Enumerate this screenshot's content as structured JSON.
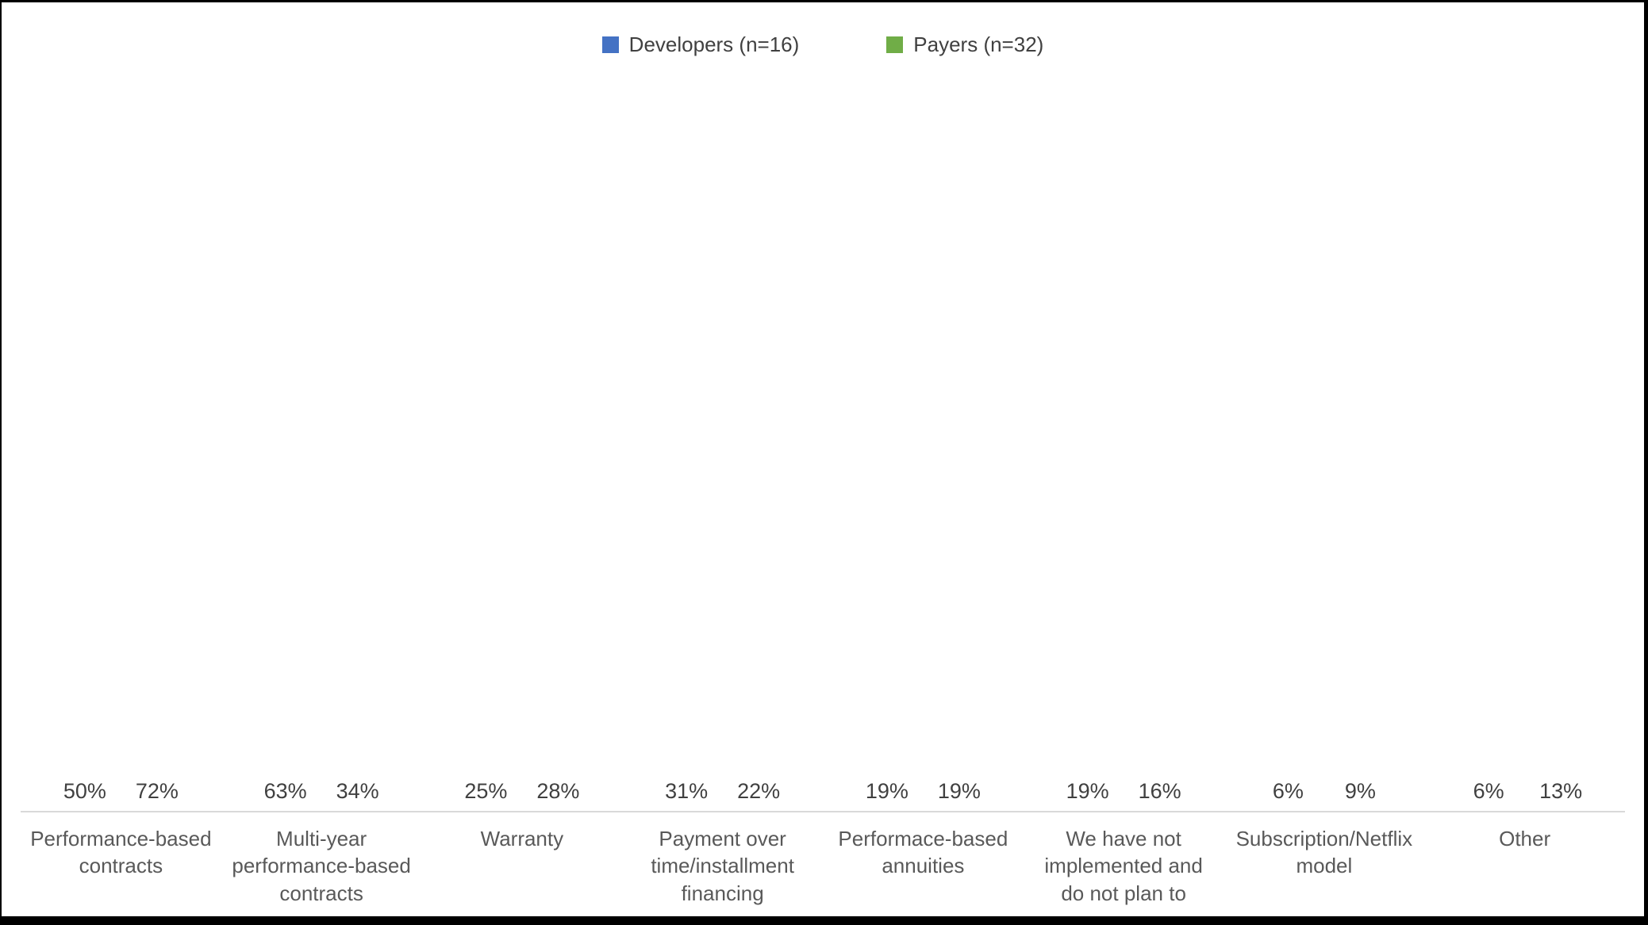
{
  "legend": {
    "items": [
      {
        "label": "Developers (n=16)",
        "color": "#4472C4"
      },
      {
        "label": "Payers (n=32)",
        "color": "#70AD47"
      }
    ]
  },
  "chart_data": {
    "type": "bar",
    "title": "",
    "categories": [
      "Performance-based contracts",
      "Multi-year performance-based contracts",
      "Warranty",
      "Payment over time/installment financing",
      "Performace-based annuities",
      "We have not implemented and do not plan to",
      "Subscription/Netflix model",
      "Other"
    ],
    "series": [
      {
        "name": "Developers (n=16)",
        "color": "#4472C4",
        "values": [
          50,
          63,
          25,
          31,
          19,
          19,
          6,
          6
        ]
      },
      {
        "name": "Payers (n=32)",
        "color": "#70AD47",
        "values": [
          72,
          34,
          28,
          22,
          19,
          16,
          9,
          13
        ]
      }
    ],
    "value_suffix": "%",
    "xlabel": "",
    "ylabel": "",
    "ylim": [
      0,
      80
    ],
    "y_axis_visible": false,
    "gridlines": false,
    "data_labels": true,
    "legend_position": "top-center",
    "axis_line_color": "#D9D9D9",
    "label_color": "#404040",
    "category_label_color": "#595959",
    "background_color": "#ffffff",
    "frame_color": "#000000"
  }
}
